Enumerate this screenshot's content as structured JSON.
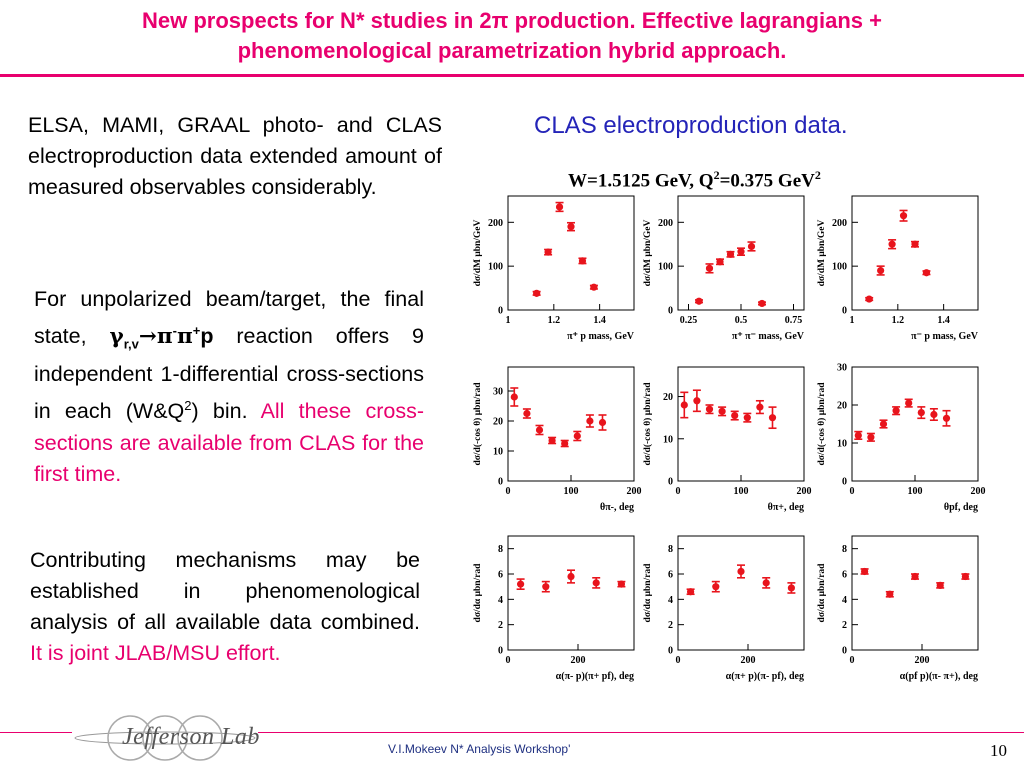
{
  "slide": {
    "title_line1": "New prospects for N* studies in 2π production. Effective lagrangians +",
    "title_line2": "phenomenological parametrization hybrid approach.",
    "para1": "ELSA, MAMI, GRAAL photo- and CLAS electroproduction data extended amount of measured observables considerably.",
    "para2_a": "For unpolarized beam/target, the final state,",
    "para2_gamma": "γ",
    "para2_gamma_sub": "r,v",
    "para2_reaction": "→π",
    "para2_minus": "-",
    "para2_pi2": "π",
    "para2_plus": "+",
    "para2_p": "p",
    "para2_b": "reaction offers 9 independent 1-differential cross-sections in each (W&Q",
    "para2_sq": "2",
    "para2_c": ") bin.",
    "para2_highlight": "All these cross-sections are available from CLAS for the first time.",
    "para3": "Contributing mechanisms may be established in phenomenological analysis of all available data combined.",
    "para3_highlight": "It is joint JLAB/MSU effort.",
    "clas_caption": "CLAS electroproduction data.",
    "plot_title_main": "W=1.5125 GeV, Q",
    "plot_title_sup1": "2",
    "plot_title_mid": "=0.375 GeV",
    "plot_title_sup2": "2",
    "footer_text": "V.I.Mokeev  N* Analysis Workshop'",
    "page_number": "10",
    "logo_text": "Jefferson Lab"
  },
  "colors": {
    "accent": "#e8006e",
    "caption": "#2424b8",
    "points": "#e8141c",
    "footer": "#1e2f80"
  },
  "chart_data": [
    {
      "type": "scatter",
      "ylabel": "dσ/dM μbn/GeV",
      "xlabel": "π⁺ p mass, GeV",
      "xlim": [
        1.0,
        1.55
      ],
      "ylim": [
        0,
        260
      ],
      "xticks": [
        1,
        1.2,
        1.4
      ],
      "xticklabels": [
        "1",
        "1.2",
        "1.4"
      ],
      "yticks": [
        0,
        100,
        200
      ],
      "yticklabels": [
        "0",
        "100",
        "200"
      ],
      "x": [
        1.125,
        1.175,
        1.225,
        1.275,
        1.325,
        1.375
      ],
      "y": [
        38,
        132,
        235,
        190,
        112,
        52
      ],
      "err": [
        4,
        6,
        10,
        9,
        6,
        4
      ]
    },
    {
      "type": "scatter",
      "ylabel": "dσ/dM μbn/GeV",
      "xlabel": "π⁺ π⁻ mass, GeV",
      "xlim": [
        0.2,
        0.8
      ],
      "ylim": [
        0,
        260
      ],
      "xticks": [
        0.25,
        0.5,
        0.75
      ],
      "xticklabels": [
        "0.25",
        "0.5",
        "0.75"
      ],
      "yticks": [
        0,
        100,
        200
      ],
      "yticklabels": [
        "0",
        "100",
        "200"
      ],
      "x": [
        0.3,
        0.35,
        0.4,
        0.45,
        0.5,
        0.55,
        0.6
      ],
      "y": [
        20,
        95,
        110,
        127,
        133,
        145,
        15
      ],
      "err": [
        3,
        10,
        6,
        6,
        8,
        10,
        3
      ]
    },
    {
      "type": "scatter",
      "ylabel": "dσ/dM μbn/GeV",
      "xlabel": "π⁻ p mass, GeV",
      "xlim": [
        1.0,
        1.55
      ],
      "ylim": [
        0,
        260
      ],
      "xticks": [
        1,
        1.2,
        1.4
      ],
      "xticklabels": [
        "1",
        "1.2",
        "1.4"
      ],
      "yticks": [
        0,
        100,
        200
      ],
      "yticklabels": [
        "0",
        "100",
        "200"
      ],
      "x": [
        1.075,
        1.125,
        1.175,
        1.225,
        1.275,
        1.325
      ],
      "y": [
        25,
        90,
        150,
        215,
        150,
        85
      ],
      "err": [
        3,
        10,
        10,
        12,
        6,
        4
      ]
    },
    {
      "type": "scatter",
      "ylabel": "dσ/d(-cos θ) μbn/rad",
      "xlabel": "θπ-, deg",
      "xlim": [
        0,
        200
      ],
      "ylim": [
        0,
        38
      ],
      "xticks": [
        0,
        100,
        200
      ],
      "xticklabels": [
        "0",
        "100",
        "200"
      ],
      "yticks": [
        0,
        10,
        20,
        30
      ],
      "yticklabels": [
        "0",
        "10",
        "20",
        "30"
      ],
      "x": [
        10,
        30,
        50,
        70,
        90,
        110,
        130,
        150
      ],
      "y": [
        28,
        22.5,
        17,
        13.5,
        12.5,
        15,
        20,
        19.5
      ],
      "err": [
        3,
        1.5,
        1.5,
        1,
        1,
        1.5,
        2,
        2.5
      ]
    },
    {
      "type": "scatter",
      "ylabel": "dσ/d(-cos θ) μbn/rad",
      "xlabel": "θπ+, deg",
      "xlim": [
        0,
        200
      ],
      "ylim": [
        0,
        27
      ],
      "xticks": [
        0,
        100,
        200
      ],
      "xticklabels": [
        "0",
        "100",
        "200"
      ],
      "yticks": [
        0,
        10,
        20
      ],
      "yticklabels": [
        "0",
        "10",
        "20"
      ],
      "x": [
        10,
        30,
        50,
        70,
        90,
        110,
        130,
        150
      ],
      "y": [
        18,
        19,
        17,
        16.5,
        15.5,
        15,
        17.5,
        15
      ],
      "err": [
        3,
        2.5,
        1,
        1,
        1,
        1,
        1.5,
        2.5
      ]
    },
    {
      "type": "scatter",
      "ylabel": "dσ/d(-cos θ) μbn/rad",
      "xlabel": "θpf, deg",
      "xlim": [
        0,
        200
      ],
      "ylim": [
        0,
        30
      ],
      "xticks": [
        0,
        100,
        200
      ],
      "xticklabels": [
        "0",
        "100",
        "200"
      ],
      "yticks": [
        0,
        10,
        20,
        30
      ],
      "yticklabels": [
        "0",
        "10",
        "20",
        "30"
      ],
      "x": [
        10,
        30,
        50,
        70,
        90,
        110,
        130,
        150
      ],
      "y": [
        12,
        11.5,
        15,
        18.5,
        20.5,
        18,
        17.5,
        16.5
      ],
      "err": [
        1,
        1,
        1,
        1,
        1,
        1.5,
        1.5,
        2
      ]
    },
    {
      "type": "scatter",
      "ylabel": "dσ/dα μbn/rad",
      "xlabel": "α(π- p)(π+ pf), deg",
      "xlim": [
        0,
        360
      ],
      "ylim": [
        0,
        9
      ],
      "xticks": [
        0,
        200
      ],
      "xticklabels": [
        "0",
        "200"
      ],
      "yticks": [
        0,
        2,
        4,
        6,
        8
      ],
      "yticklabels": [
        "0",
        "2",
        "4",
        "6",
        "8"
      ],
      "x": [
        36,
        108,
        180,
        252,
        324
      ],
      "y": [
        5.2,
        5.0,
        5.8,
        5.3,
        5.2
      ],
      "err": [
        0.4,
        0.4,
        0.5,
        0.4,
        0.2
      ]
    },
    {
      "type": "scatter",
      "ylabel": "dσ/dα μbn/rad",
      "xlabel": "α(π+ p)(π- pf), deg",
      "xlim": [
        0,
        360
      ],
      "ylim": [
        0,
        9
      ],
      "xticks": [
        0,
        200
      ],
      "xticklabels": [
        "0",
        "200"
      ],
      "yticks": [
        0,
        2,
        4,
        6,
        8
      ],
      "yticklabels": [
        "0",
        "2",
        "4",
        "6",
        "8"
      ],
      "x": [
        36,
        108,
        180,
        252,
        324
      ],
      "y": [
        4.6,
        5.0,
        6.2,
        5.3,
        4.9
      ],
      "err": [
        0.2,
        0.4,
        0.5,
        0.4,
        0.4
      ]
    },
    {
      "type": "scatter",
      "ylabel": "dσ/dα μbn/rad",
      "xlabel": "α(pf p)(π- π+), deg",
      "xlim": [
        0,
        360
      ],
      "ylim": [
        0,
        9
      ],
      "xticks": [
        0,
        200
      ],
      "xticklabels": [
        "0",
        "200"
      ],
      "yticks": [
        0,
        2,
        4,
        6,
        8
      ],
      "yticklabels": [
        "0",
        "2",
        "4",
        "6",
        "8"
      ],
      "x": [
        36,
        108,
        180,
        252,
        324
      ],
      "y": [
        6.2,
        4.4,
        5.8,
        5.1,
        5.8
      ],
      "err": [
        0.2,
        0.2,
        0.2,
        0.2,
        0.2
      ]
    }
  ]
}
